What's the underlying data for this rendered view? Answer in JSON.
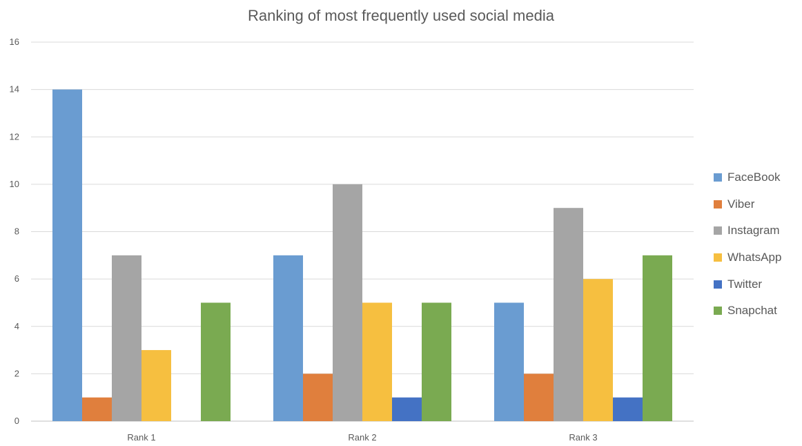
{
  "chart_data": {
    "type": "bar",
    "title": "Ranking of most frequently used social media",
    "xlabel": "",
    "ylabel": "",
    "categories": [
      "Rank 1",
      "Rank 2",
      "Rank 3"
    ],
    "ylim": [
      0,
      16
    ],
    "yticks": [
      0,
      2,
      4,
      6,
      8,
      10,
      12,
      14,
      16
    ],
    "grid": true,
    "legend_position": "right",
    "series": [
      {
        "name": "FaceBook",
        "color": "#6a9cd1",
        "values": [
          14,
          7,
          5
        ]
      },
      {
        "name": "Viber",
        "color": "#e07f3d",
        "values": [
          1,
          2,
          2
        ]
      },
      {
        "name": "Instagram",
        "color": "#a5a5a5",
        "values": [
          7,
          10,
          9
        ]
      },
      {
        "name": "WhatsApp",
        "color": "#f6bf40",
        "values": [
          3,
          5,
          6
        ]
      },
      {
        "name": "Twitter",
        "color": "#4472c4",
        "values": [
          0,
          1,
          1
        ]
      },
      {
        "name": "Snapchat",
        "color": "#7aaa51",
        "values": [
          5,
          5,
          7
        ]
      }
    ]
  }
}
